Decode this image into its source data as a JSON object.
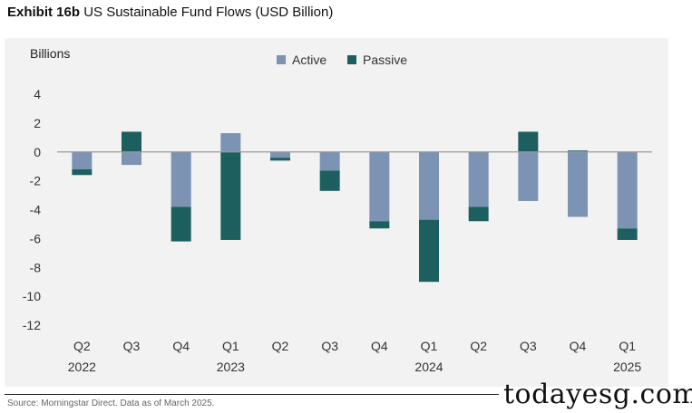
{
  "title": {
    "exhibit": "Exhibit 16b",
    "text": "US Sustainable Fund Flows (USD Billion)"
  },
  "source": "Source: Morningstar Direct. Data as of March 2025.",
  "watermark": "todayesg.com",
  "colors": {
    "active": "#7c93b4",
    "passive": "#1d5f5f",
    "zero_line": "#999999",
    "panel": "#f2f2f2"
  },
  "chart_data": {
    "type": "bar",
    "stacked": true,
    "unit_label": "Billions",
    "ylim": [
      -12,
      4
    ],
    "yticks": [
      4,
      2,
      0,
      -2,
      -4,
      -6,
      -8,
      -10,
      -12
    ],
    "grid": false,
    "legend_position": "top",
    "categories": [
      "Q2 2022",
      "Q3 2022",
      "Q4 2022",
      "Q1 2023",
      "Q2 2023",
      "Q3 2023",
      "Q4 2023",
      "Q1 2024",
      "Q2 2024",
      "Q3 2024",
      "Q4 2024",
      "Q1 2025"
    ],
    "x_tick_labels": [
      {
        "quarter": "Q2",
        "year": "2022"
      },
      {
        "quarter": "Q3",
        "year": ""
      },
      {
        "quarter": "Q4",
        "year": ""
      },
      {
        "quarter": "Q1",
        "year": "2023"
      },
      {
        "quarter": "Q2",
        "year": ""
      },
      {
        "quarter": "Q3",
        "year": ""
      },
      {
        "quarter": "Q4",
        "year": ""
      },
      {
        "quarter": "Q1",
        "year": "2024"
      },
      {
        "quarter": "Q2",
        "year": ""
      },
      {
        "quarter": "Q3",
        "year": ""
      },
      {
        "quarter": "Q4",
        "year": ""
      },
      {
        "quarter": "Q1",
        "year": "2025"
      }
    ],
    "series": [
      {
        "name": "Active",
        "values": [
          -1.2,
          -0.9,
          -3.8,
          1.3,
          -0.4,
          -1.3,
          -4.8,
          -4.7,
          -3.8,
          -3.4,
          -4.5,
          -5.3
        ]
      },
      {
        "name": "Passive",
        "values": [
          -0.4,
          1.4,
          -2.4,
          -6.1,
          -0.2,
          -1.4,
          -0.5,
          -4.3,
          -1.0,
          1.4,
          0.1,
          -0.8
        ]
      }
    ]
  }
}
